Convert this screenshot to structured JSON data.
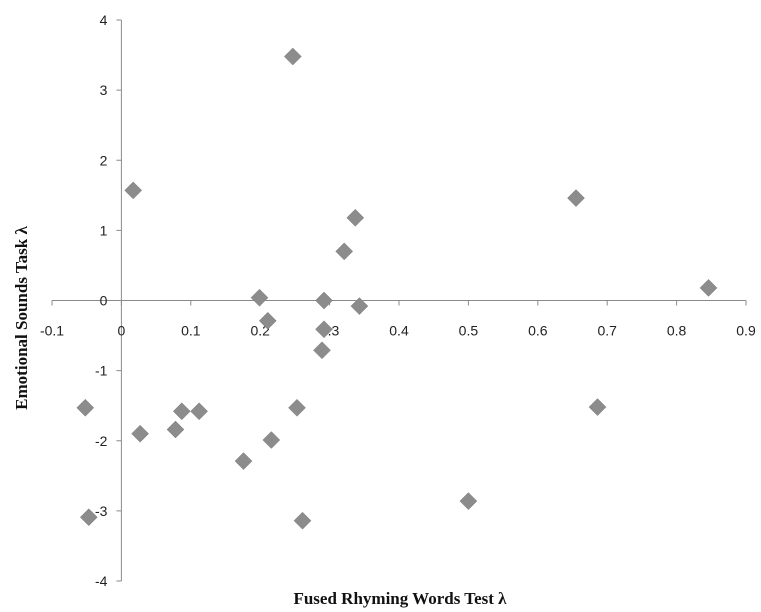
{
  "chart_data": {
    "type": "scatter",
    "title": "",
    "xlabel": "Fused Rhyming Words Test λ",
    "ylabel": "Emotional Sounds Task λ",
    "xlim": [
      -0.1,
      0.9
    ],
    "ylim": [
      -4,
      4
    ],
    "x_ticks": [
      "-0.1",
      "0",
      "0.1",
      "0.2",
      "0.3",
      "0.4",
      "0.5",
      "0.6",
      "0.7",
      "0.8",
      "0.9"
    ],
    "y_ticks": [
      "4",
      "3",
      "2",
      "1",
      "0",
      "-1",
      "-2",
      "-3",
      "-4"
    ],
    "grid": false,
    "legend": "none",
    "marker": "diamond",
    "marker_color": "#8c8c8c",
    "series": [
      {
        "points": [
          {
            "x": 0.247,
            "y": 3.48
          },
          {
            "x": 0.017,
            "y": 1.57
          },
          {
            "x": 0.655,
            "y": 1.46
          },
          {
            "x": 0.337,
            "y": 1.18
          },
          {
            "x": 0.321,
            "y": 0.7
          },
          {
            "x": 0.846,
            "y": 0.18
          },
          {
            "x": 0.199,
            "y": 0.04
          },
          {
            "x": 0.292,
            "y": 0.0
          },
          {
            "x": 0.343,
            "y": -0.08
          },
          {
            "x": 0.211,
            "y": -0.29
          },
          {
            "x": 0.292,
            "y": -0.41
          },
          {
            "x": 0.289,
            "y": -0.71
          },
          {
            "x": -0.052,
            "y": -1.53
          },
          {
            "x": 0.087,
            "y": -1.58
          },
          {
            "x": 0.112,
            "y": -1.58
          },
          {
            "x": 0.253,
            "y": -1.53
          },
          {
            "x": 0.686,
            "y": -1.52
          },
          {
            "x": 0.078,
            "y": -1.84
          },
          {
            "x": 0.027,
            "y": -1.9
          },
          {
            "x": 0.216,
            "y": -1.99
          },
          {
            "x": 0.176,
            "y": -2.29
          },
          {
            "x": 0.5,
            "y": -2.86
          },
          {
            "x": -0.047,
            "y": -3.09
          },
          {
            "x": 0.261,
            "y": -3.14
          }
        ]
      }
    ]
  }
}
